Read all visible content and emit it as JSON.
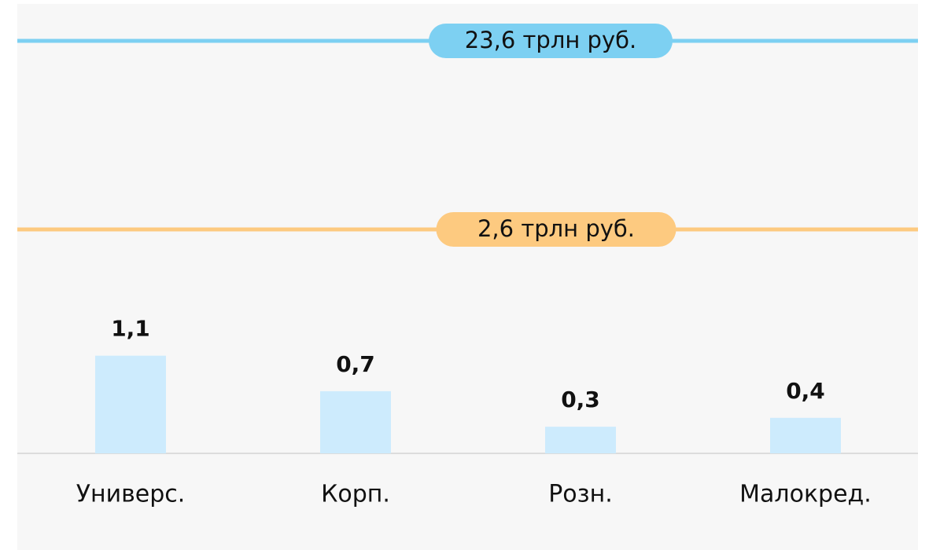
{
  "chart_data": {
    "type": "bar",
    "annotations": [
      {
        "text": "23,6 трлн руб.",
        "color": "#7dd0f2"
      },
      {
        "text": "2,6 трлн руб.",
        "color": "#fdca80"
      }
    ],
    "categories": [
      "Универс.",
      "Корп.",
      "Розн.",
      "Малокред."
    ],
    "values": [
      1.1,
      0.7,
      0.3,
      0.4
    ],
    "value_labels": [
      "1,1",
      "0,7",
      "0,3",
      "0,4"
    ],
    "color": "#cdebfd"
  }
}
